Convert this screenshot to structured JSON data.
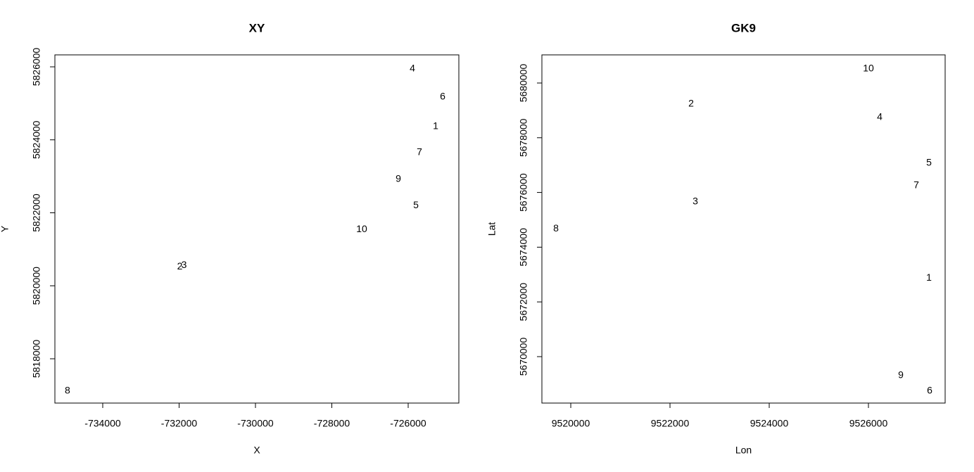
{
  "chart_data": [
    {
      "type": "scatter",
      "title": "XY",
      "x_label": "X",
      "y_label": "Y",
      "labels": [
        "1",
        "2",
        "3",
        "4",
        "5",
        "6",
        "7",
        "8",
        "9",
        "10"
      ],
      "x": [
        -725281,
        -731982,
        -731871,
        -725889,
        -725797,
        -725097,
        -725705,
        -734922,
        -726258,
        -727217
      ],
      "y": [
        5824361,
        5820520,
        5820559,
        5825942,
        5822193,
        5825171,
        5823653,
        5817113,
        5822920,
        5821537
      ],
      "xlim": [
        -735253,
        -724673
      ],
      "xticks": [
        -734000,
        -732000,
        -730000,
        -728000,
        -726000
      ],
      "ylim": [
        5816786,
        5826328
      ],
      "yticks": [
        5818000,
        5820000,
        5822000,
        5824000,
        5826000
      ]
    },
    {
      "type": "scatter",
      "title": "GK9",
      "x_label": "Lon",
      "y_label": "Lat",
      "labels": [
        "1",
        "2",
        "3",
        "4",
        "5",
        "6",
        "7",
        "8",
        "9",
        "10"
      ],
      "x": [
        9527220,
        9522426,
        9522511,
        9526227,
        9527220,
        9527234,
        9526965,
        9519702,
        9526652,
        9526000
      ],
      "y": [
        5672874,
        5679229,
        5675666,
        5678746,
        5677080,
        5668740,
        5676257,
        5674668,
        5669306,
        5680514
      ],
      "xlim": [
        9519418,
        9527546
      ],
      "xticks": [
        9520000,
        9522000,
        9524000,
        9526000
      ],
      "ylim": [
        5668303,
        5681028
      ],
      "yticks": [
        5670000,
        5672000,
        5674000,
        5676000,
        5678000,
        5680000
      ]
    }
  ]
}
